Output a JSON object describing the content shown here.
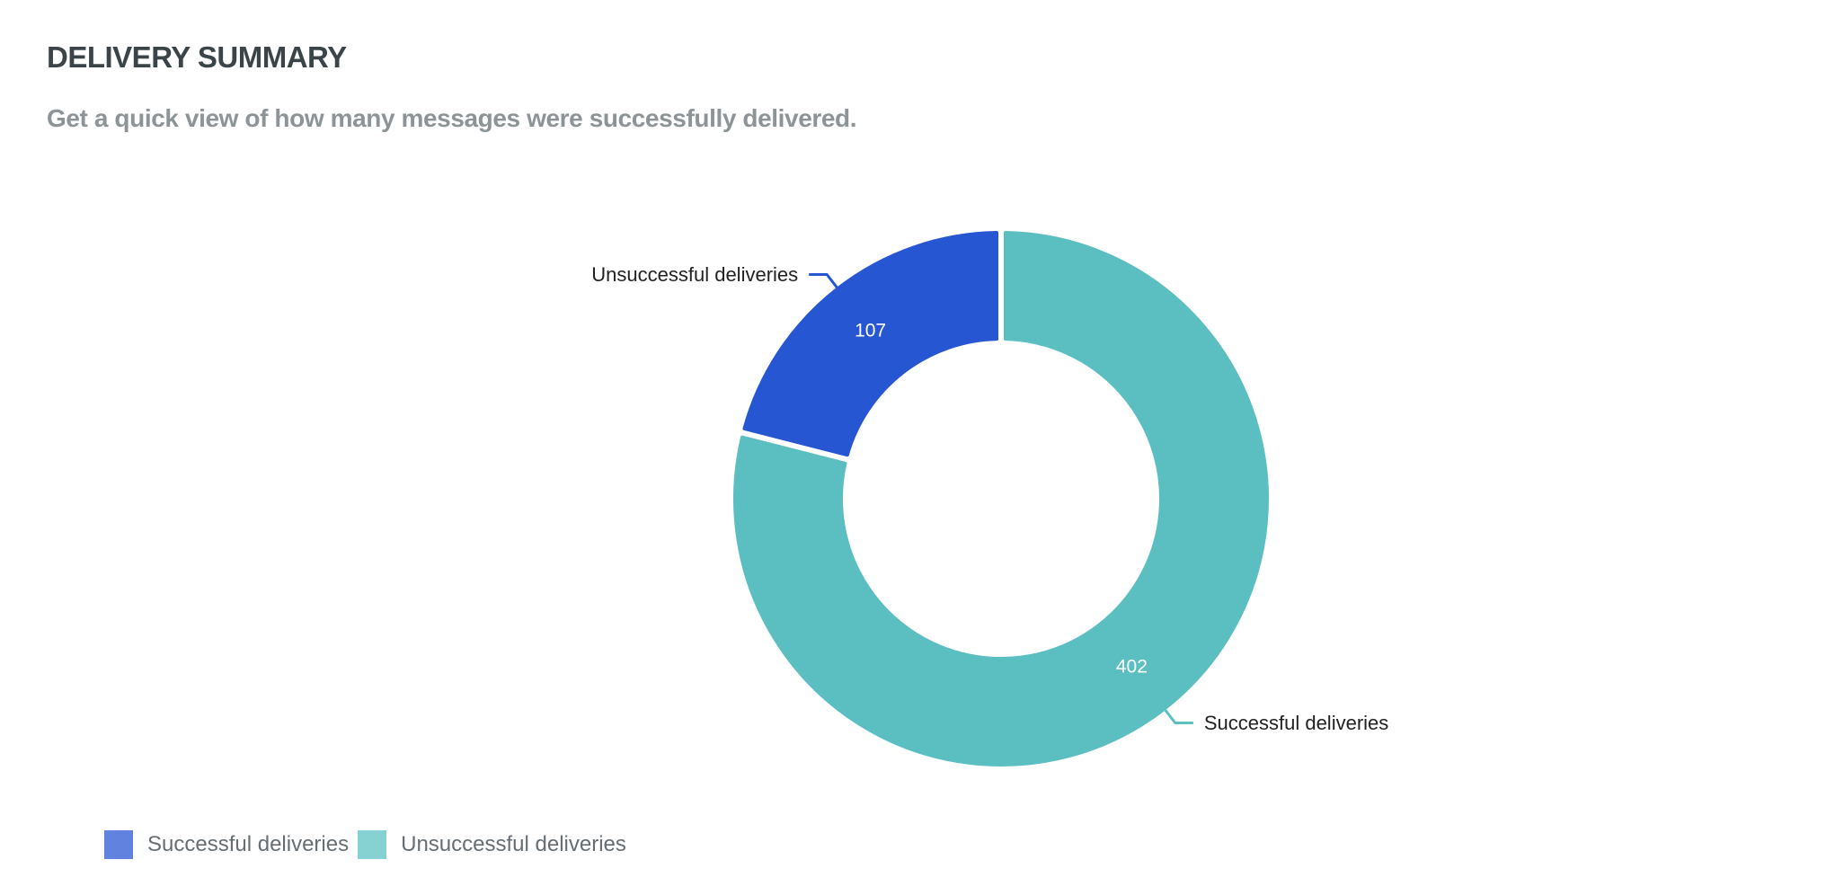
{
  "header": {
    "title": "DELIVERY SUMMARY",
    "subtitle": "Get a quick view of how many messages were successfully delivered."
  },
  "colors": {
    "unsuccessful": "#2756d3",
    "successful": "#5bbfc1",
    "legend_successful_swatch": "#6282e0",
    "legend_unsuccessful_swatch": "#86d2d2"
  },
  "legend": {
    "items": [
      {
        "label": "Successful deliveries",
        "color": "#6282e0"
      },
      {
        "label": "Unsuccessful deliveries",
        "color": "#86d2d2"
      }
    ]
  },
  "chart_data": {
    "type": "pie",
    "variant": "donut",
    "slices": [
      {
        "label": "Unsuccessful deliveries",
        "value": 107,
        "color": "#2756d3"
      },
      {
        "label": "Successful deliveries",
        "value": 402,
        "color": "#5bbfc1"
      }
    ],
    "legend_placement": "bottom-left"
  }
}
